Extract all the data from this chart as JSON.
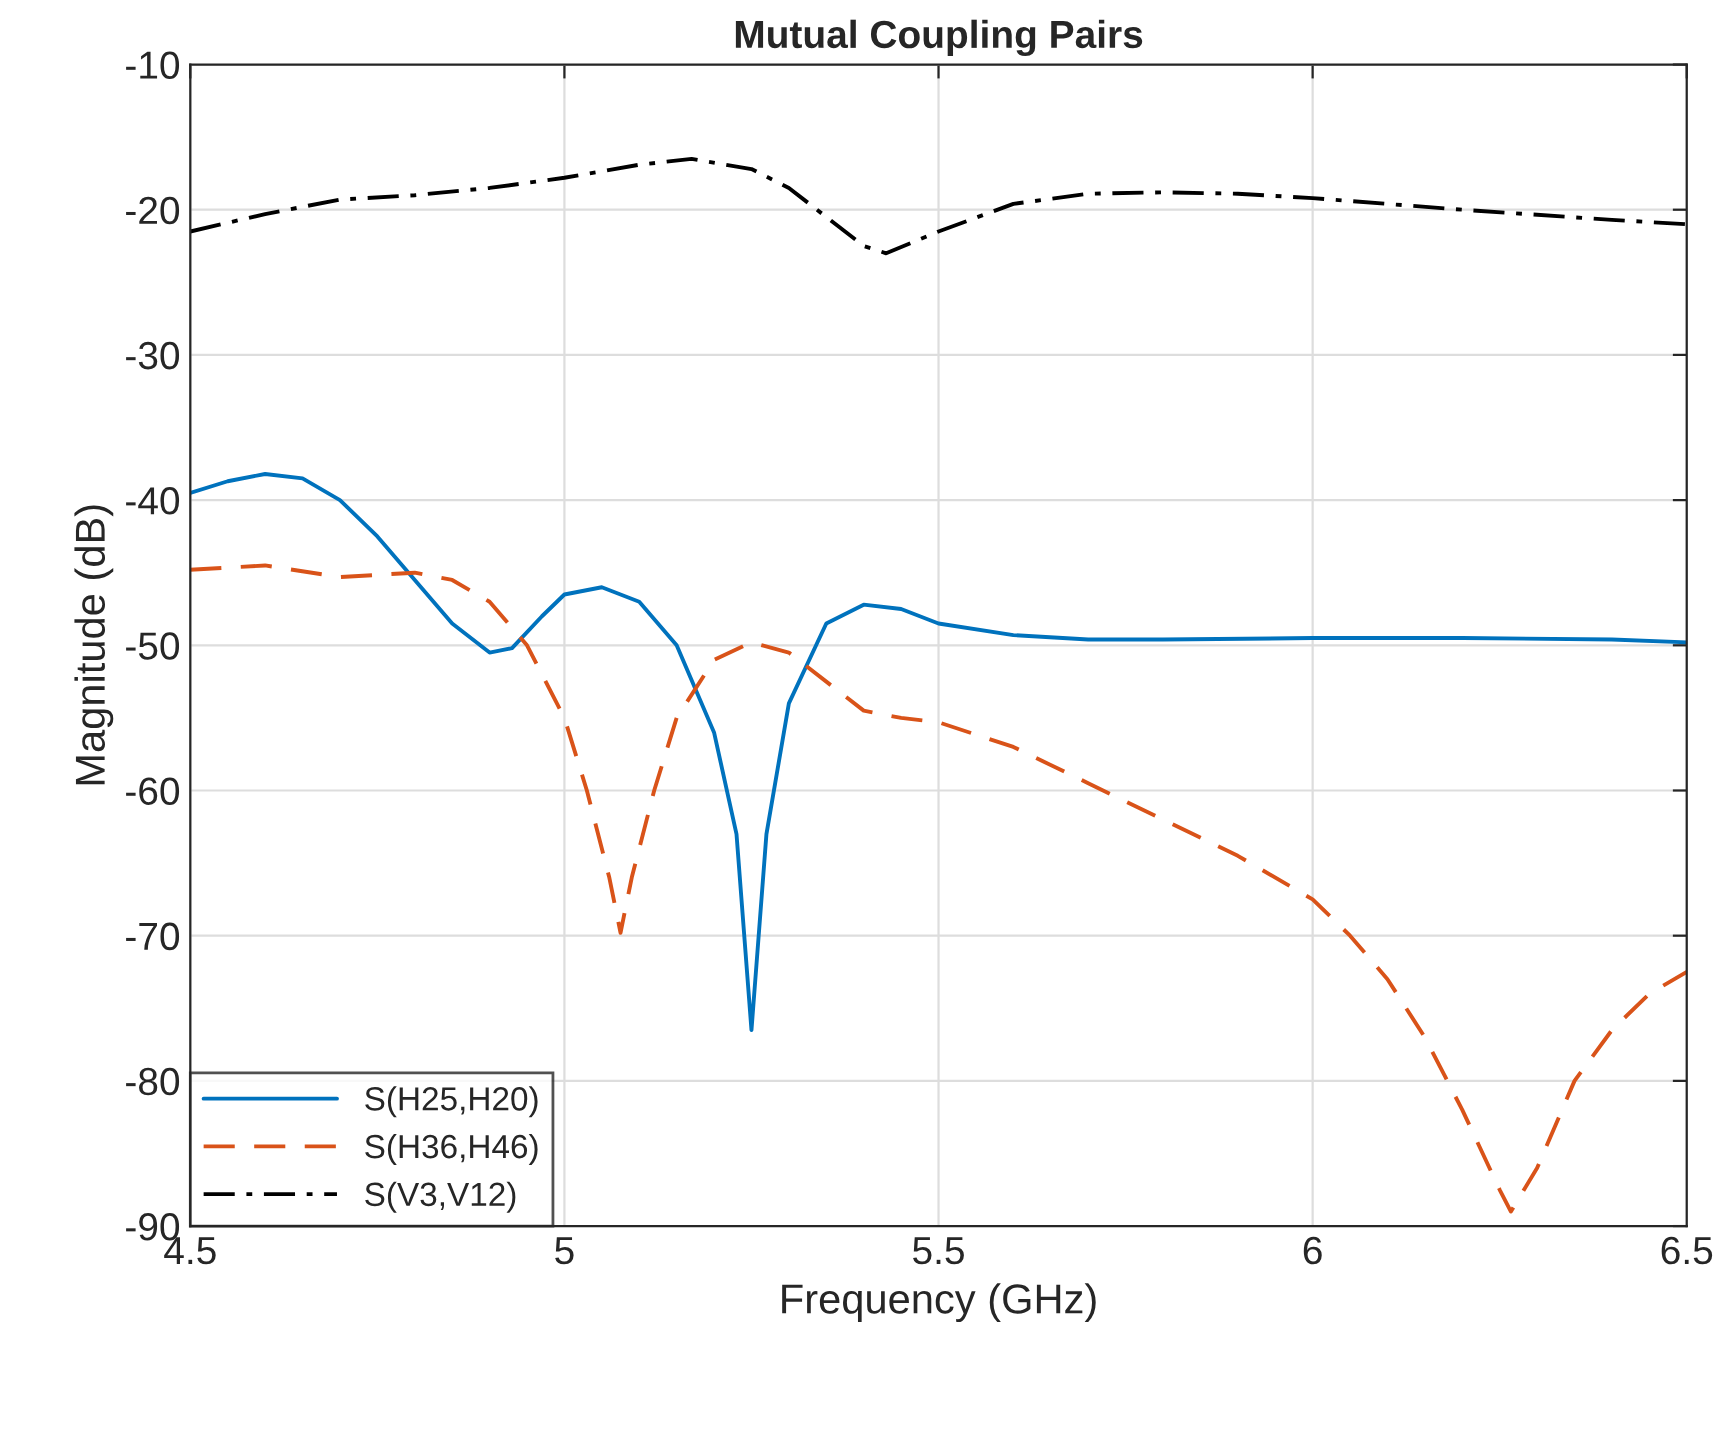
{
  "chart_data": {
    "type": "line",
    "title": "Mutual Coupling Pairs",
    "xlabel": "Frequency (GHz)",
    "ylabel": "Magnitude (dB)",
    "xlim": [
      4.5,
      6.5
    ],
    "xticks": [
      4.5,
      5,
      5.5,
      6,
      6.5
    ],
    "ylim": [
      -90,
      -10
    ],
    "yticks": [
      -90,
      -80,
      -70,
      -60,
      -50,
      -40,
      -30,
      -20,
      -10
    ],
    "grid": true,
    "legend": "bottom left",
    "series": [
      {
        "name": "S(H25,H20)",
        "color": "#0072bd",
        "line_style": "solid",
        "x": [
          4.5,
          4.55,
          4.6,
          4.65,
          4.7,
          4.75,
          4.8,
          4.85,
          4.9,
          4.93,
          4.97,
          5.0,
          5.05,
          5.1,
          5.15,
          5.2,
          5.23,
          5.25,
          5.27,
          5.3,
          5.35,
          5.4,
          5.45,
          5.5,
          5.6,
          5.7,
          5.8,
          6.0,
          6.2,
          6.4,
          6.5
        ],
        "values": [
          -39.5,
          -38.7,
          -38.2,
          -38.5,
          -40,
          -42.5,
          -45.5,
          -48.5,
          -50.5,
          -50.2,
          -48,
          -46.5,
          -46,
          -47,
          -50,
          -56,
          -63,
          -76.5,
          -63,
          -54,
          -48.5,
          -47.2,
          -47.5,
          -48.5,
          -49.3,
          -49.6,
          -49.6,
          -49.5,
          -49.5,
          -49.6,
          -49.8
        ]
      },
      {
        "name": "S(H36,H46)",
        "color": "#d95319",
        "line_style": "dashed",
        "x": [
          4.5,
          4.6,
          4.7,
          4.8,
          4.85,
          4.9,
          4.95,
          5.0,
          5.03,
          5.06,
          5.075,
          5.09,
          5.12,
          5.15,
          5.2,
          5.25,
          5.3,
          5.35,
          5.4,
          5.45,
          5.5,
          5.6,
          5.7,
          5.8,
          5.9,
          6.0,
          6.05,
          6.1,
          6.15,
          6.2,
          6.25,
          6.265,
          6.3,
          6.35,
          6.4,
          6.45,
          6.5
        ],
        "values": [
          -44.8,
          -44.5,
          -45.3,
          -45,
          -45.5,
          -47,
          -50,
          -55,
          -60,
          -66,
          -69.8,
          -66,
          -60,
          -55,
          -51,
          -49.8,
          -50.5,
          -52.5,
          -54.5,
          -55,
          -55.3,
          -57,
          -59.5,
          -62,
          -64.5,
          -67.5,
          -70,
          -73,
          -77,
          -82,
          -87.5,
          -89,
          -86,
          -80,
          -76.5,
          -74,
          -72.5
        ]
      },
      {
        "name": "S(V3,V12)",
        "color": "#000000",
        "line_style": "dashdot",
        "x": [
          4.5,
          4.6,
          4.7,
          4.8,
          4.9,
          5.0,
          5.1,
          5.17,
          5.25,
          5.3,
          5.35,
          5.4,
          5.43,
          5.5,
          5.6,
          5.7,
          5.8,
          5.9,
          6.0,
          6.2,
          6.4,
          6.5
        ],
        "values": [
          -21.5,
          -20.3,
          -19.3,
          -19,
          -18.5,
          -17.8,
          -16.9,
          -16.5,
          -17.2,
          -18.5,
          -20.5,
          -22.5,
          -23,
          -21.5,
          -19.6,
          -18.9,
          -18.8,
          -18.9,
          -19.2,
          -20,
          -20.7,
          -21
        ]
      }
    ]
  }
}
